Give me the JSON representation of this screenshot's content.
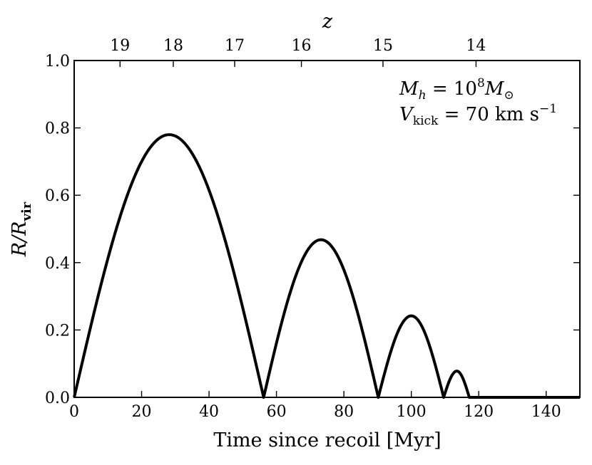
{
  "chart_data": {
    "type": "line",
    "title": "",
    "xlabel": "Time since recoil [Myr]",
    "ylabel": "R/R_vir",
    "ylabel_parts": {
      "main": "R/R",
      "sub": "vir"
    },
    "top_axis_label": "z",
    "xlim": [
      0,
      150
    ],
    "ylim": [
      0,
      1.0
    ],
    "x_ticks": [
      0,
      20,
      40,
      60,
      80,
      100,
      120,
      140
    ],
    "x_tick_labels": [
      "0",
      "20",
      "40",
      "60",
      "80",
      "100",
      "120",
      "140"
    ],
    "y_ticks": [
      0.0,
      0.2,
      0.4,
      0.6,
      0.8,
      1.0
    ],
    "y_tick_labels": [
      "0.0",
      "0.2",
      "0.4",
      "0.6",
      "0.8",
      "1.0"
    ],
    "top_ticks": [
      {
        "label": "19",
        "time": 13.6
      },
      {
        "label": "18",
        "time": 29.4
      },
      {
        "label": "17",
        "time": 47.6
      },
      {
        "label": "16",
        "time": 67.4
      },
      {
        "label": "15",
        "time": 91.6
      },
      {
        "label": "14",
        "time": 119.2
      }
    ],
    "annotations": {
      "line1": {
        "lhs": "M",
        "lhs_sub": "h",
        "eq": " = 10",
        "exp": "8",
        "rhs": "M",
        "rhs_sub": "⊙"
      },
      "line2": {
        "lhs": "V",
        "lhs_sub": "kick",
        "eq": " = 70 km s",
        "exp": "−1"
      }
    },
    "series": [
      {
        "name": "R/R_vir",
        "color": "#000000",
        "arcs": [
          {
            "start": 0,
            "end": 56.2,
            "peak_time": 28.2,
            "peak": 0.78
          },
          {
            "start": 56.2,
            "end": 90.2,
            "peak_time": 73.2,
            "peak": 0.468
          },
          {
            "start": 90.2,
            "end": 109.6,
            "peak_time": 100.0,
            "peak": 0.242
          },
          {
            "start": 109.6,
            "end": 117.2,
            "peak_time": 113.5,
            "peak": 0.078
          }
        ],
        "tail": {
          "start": 117.2,
          "end": 150,
          "value": 0.0
        }
      }
    ]
  }
}
